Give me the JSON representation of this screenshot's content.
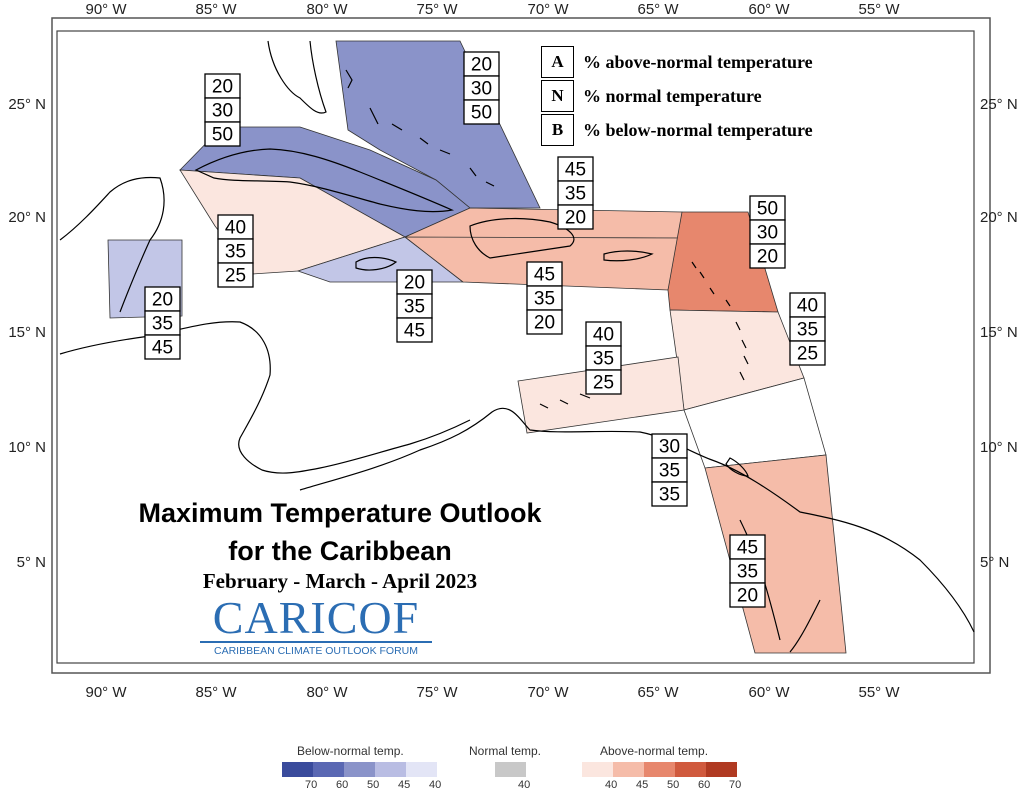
{
  "map": {
    "title_line1": "Maximum Temperature Outlook",
    "title_line2": "for the Caribbean",
    "period": "February - March - April  2023",
    "longitude_ticks": [
      "90° W",
      "85° W",
      "80° W",
      "75° W",
      "70° W",
      "65° W",
      "60° W",
      "55° W"
    ],
    "latitude_ticks": [
      "25° N",
      "20° N",
      "15° N",
      "10° N",
      "5° N"
    ],
    "logo": {
      "main": "CARICOF",
      "sub": "CARIBBEAN CLIMATE OUTLOOK FORUM"
    }
  },
  "key": [
    {
      "letter": "A",
      "text": "% above-normal temperature"
    },
    {
      "letter": "N",
      "text": "% normal temperature"
    },
    {
      "letter": "B",
      "text": "% below-normal temperature"
    }
  ],
  "regions": [
    {
      "name": "bahamas",
      "a": "20",
      "n": "30",
      "b": "50",
      "color": "#8a93c9"
    },
    {
      "name": "cuba",
      "a": "20",
      "n": "30",
      "b": "50",
      "color": "#8a93c9"
    },
    {
      "name": "yucatan-cayman",
      "a": "40",
      "n": "35",
      "b": "25",
      "color": "#fbe6df"
    },
    {
      "name": "belize",
      "a": "20",
      "n": "35",
      "b": "45",
      "color": "#c2c6e7"
    },
    {
      "name": "jamaica",
      "a": "20",
      "n": "35",
      "b": "45",
      "color": "#c2c6e7"
    },
    {
      "name": "hispaniola-north",
      "a": "45",
      "n": "35",
      "b": "20",
      "color": "#f5bca9"
    },
    {
      "name": "hispaniola-puerto-rico",
      "a": "45",
      "n": "35",
      "b": "20",
      "color": "#f5bca9"
    },
    {
      "name": "leeward-islands",
      "a": "50",
      "n": "30",
      "b": "20",
      "color": "#e7876d"
    },
    {
      "name": "windward-islands",
      "a": "40",
      "n": "35",
      "b": "25",
      "color": "#fbe6df"
    },
    {
      "name": "abc-islands",
      "a": "40",
      "n": "35",
      "b": "25",
      "color": "#fbe6df"
    },
    {
      "name": "trinidad",
      "a": "30",
      "n": "35",
      "b": "35",
      "color": "#ffffff"
    },
    {
      "name": "guianas",
      "a": "45",
      "n": "35",
      "b": "20",
      "color": "#f5bca9"
    }
  ],
  "colorbar": {
    "below_title": "Below-normal temp.",
    "normal_title": "Normal temp.",
    "above_title": "Above-normal temp.",
    "below_values": [
      "70",
      "60",
      "50",
      "45",
      "40"
    ],
    "normal_values": [
      "40"
    ],
    "above_values": [
      "40",
      "45",
      "50",
      "60",
      "70"
    ],
    "below_colors": [
      "#3a4b9c",
      "#5a68b3",
      "#8a93c9",
      "#b9bde3",
      "#e3e5f6"
    ],
    "normal_colors": [
      "#c8c8c8"
    ],
    "above_colors": [
      "#fbe6df",
      "#f5bca9",
      "#e7876d",
      "#d05a3e",
      "#b03a22"
    ]
  }
}
